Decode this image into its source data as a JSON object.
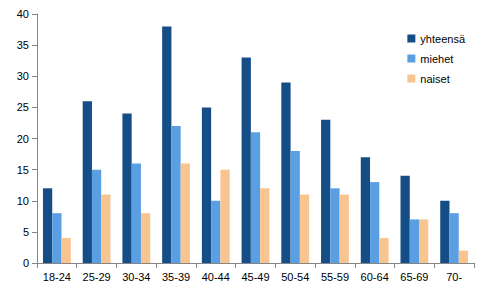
{
  "chart_data": {
    "type": "bar",
    "categories": [
      "18-24",
      "25-29",
      "30-34",
      "35-39",
      "40-44",
      "45-49",
      "50-54",
      "55-59",
      "60-64",
      "65-69",
      "70-"
    ],
    "series": [
      {
        "name": "yhteensä",
        "color": "#154d86",
        "values": [
          12,
          26,
          24,
          38,
          25,
          33,
          29,
          23,
          17,
          14,
          10
        ]
      },
      {
        "name": "miehet",
        "color": "#5b9fe3",
        "values": [
          8,
          15,
          16,
          22,
          10,
          21,
          18,
          12,
          13,
          7,
          8
        ]
      },
      {
        "name": "naiset",
        "color": "#f8c490",
        "values": [
          4,
          11,
          8,
          16,
          15,
          12,
          11,
          11,
          4,
          7,
          2
        ]
      }
    ],
    "ylim": [
      0,
      40
    ],
    "yticks": [
      0,
      5,
      10,
      15,
      20,
      25,
      30,
      35,
      40
    ],
    "grid": false,
    "legend": "upper right"
  }
}
